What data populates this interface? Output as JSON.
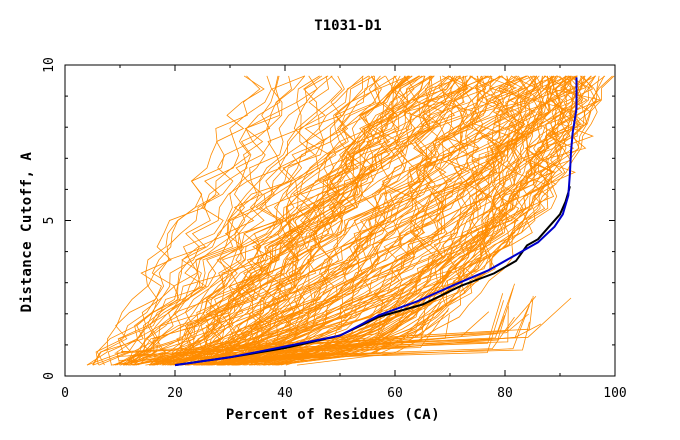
{
  "chart_data": {
    "type": "line",
    "title": "T1031-D1",
    "xlabel": "Percent of Residues (CA)",
    "ylabel": "Distance Cutoff, A",
    "xlim": [
      0,
      100
    ],
    "ylim": [
      0,
      10
    ],
    "xticks": [
      "0",
      "20",
      "40",
      "60",
      "80",
      "100"
    ],
    "yticks": [
      "0",
      "5",
      "10"
    ],
    "grid": false,
    "legend": "none",
    "colors": {
      "models": "#ff8c00",
      "highlight_a": "#000000",
      "highlight_b": "#0000cc"
    },
    "series": [
      {
        "role": "highlight",
        "color": "#000000",
        "x": [
          20,
          30,
          40,
          50,
          57,
          65,
          72,
          78,
          82,
          84,
          86,
          88,
          90,
          91,
          91.5,
          91.8
        ],
        "y": [
          0.35,
          0.6,
          0.9,
          1.3,
          1.9,
          2.3,
          2.9,
          3.3,
          3.7,
          4.2,
          4.4,
          4.8,
          5.2,
          5.6,
          5.9,
          6.1
        ]
      },
      {
        "role": "highlight",
        "color": "#0000cc",
        "x": [
          20,
          30,
          40,
          50,
          57,
          64,
          71,
          77,
          82,
          86,
          89,
          90.5,
          91.5,
          91.8,
          92,
          92.3,
          93,
          93
        ],
        "y": [
          0.35,
          0.6,
          0.95,
          1.3,
          1.95,
          2.4,
          2.95,
          3.4,
          3.9,
          4.3,
          4.8,
          5.2,
          5.8,
          6.5,
          7.2,
          7.8,
          8.6,
          9.6
        ]
      }
    ]
  }
}
